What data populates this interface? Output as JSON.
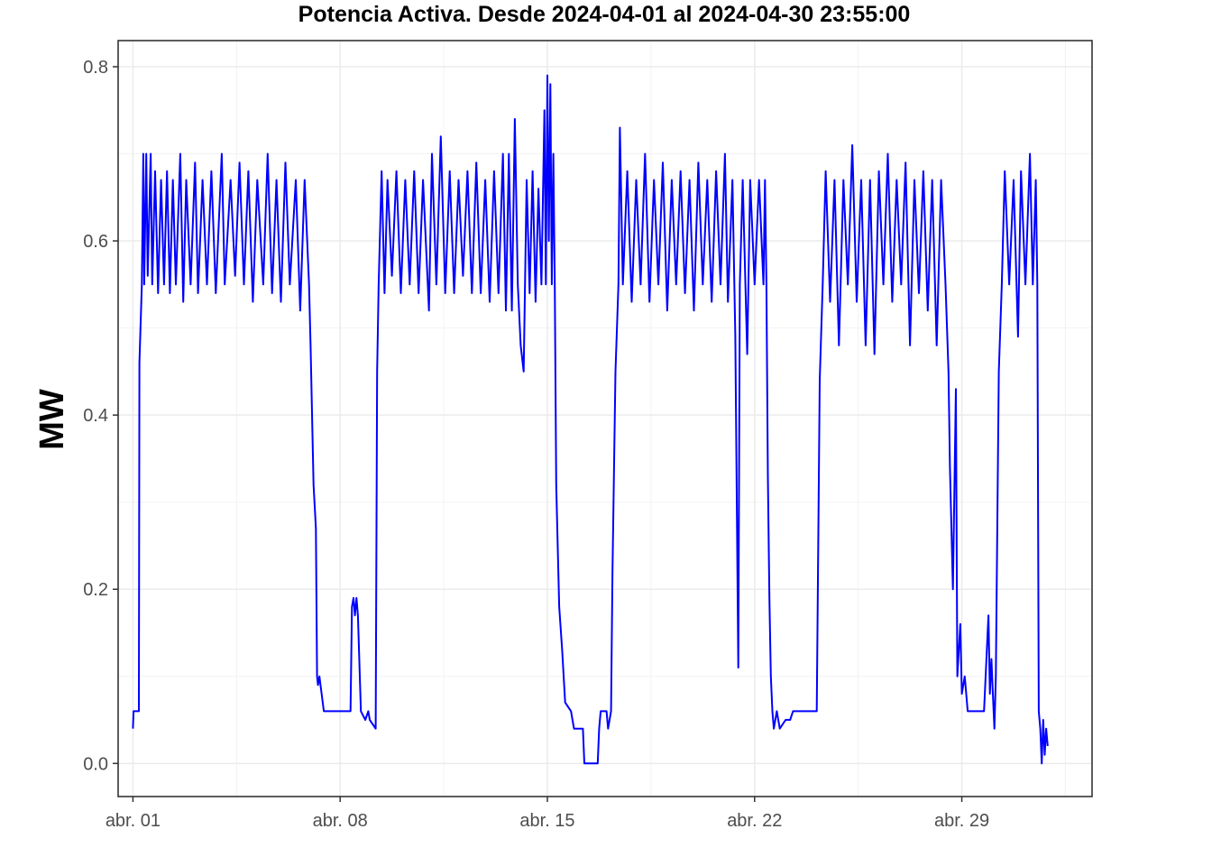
{
  "chart_data": {
    "type": "line",
    "title": "Potencia Activa. Desde  2024-04-01  al  2024-04-30 23:55:00",
    "xlabel": "",
    "ylabel": "MW",
    "x_tick_labels": [
      {
        "day": 1,
        "label": "abr. 01"
      },
      {
        "day": 8,
        "label": "abr. 08"
      },
      {
        "day": 15,
        "label": "abr. 15"
      },
      {
        "day": 22,
        "label": "abr. 22"
      },
      {
        "day": 29,
        "label": "abr. 29"
      }
    ],
    "y_tick_labels": [
      {
        "value": 0.0,
        "label": "0.0"
      },
      {
        "value": 0.2,
        "label": "0.2"
      },
      {
        "value": 0.4,
        "label": "0.4"
      },
      {
        "value": 0.6,
        "label": "0.6"
      },
      {
        "value": 0.8,
        "label": "0.8"
      }
    ],
    "xlim": [
      -0.5,
      32.4
    ],
    "ylim": [
      -0.038,
      0.83
    ],
    "grid": true,
    "line_color": "#0000ff",
    "series": [
      {
        "x_unit": "days since 2024-04-01 00:00 (x=0 is abr. 01)",
        "points": [
          [
            0.0,
            0.04
          ],
          [
            0.02,
            0.06
          ],
          [
            0.2,
            0.06
          ],
          [
            0.22,
            0.46
          ],
          [
            0.3,
            0.55
          ],
          [
            0.35,
            0.7
          ],
          [
            0.38,
            0.55
          ],
          [
            0.45,
            0.7
          ],
          [
            0.5,
            0.56
          ],
          [
            0.6,
            0.7
          ],
          [
            0.65,
            0.55
          ],
          [
            0.75,
            0.68
          ],
          [
            0.85,
            0.54
          ],
          [
            0.95,
            0.67
          ],
          [
            1.05,
            0.55
          ],
          [
            1.15,
            0.68
          ],
          [
            1.25,
            0.54
          ],
          [
            1.35,
            0.67
          ],
          [
            1.45,
            0.55
          ],
          [
            1.6,
            0.7
          ],
          [
            1.7,
            0.53
          ],
          [
            1.8,
            0.67
          ],
          [
            1.95,
            0.55
          ],
          [
            2.1,
            0.69
          ],
          [
            2.2,
            0.54
          ],
          [
            2.35,
            0.67
          ],
          [
            2.5,
            0.55
          ],
          [
            2.65,
            0.68
          ],
          [
            2.8,
            0.54
          ],
          [
            3.0,
            0.7
          ],
          [
            3.1,
            0.55
          ],
          [
            3.3,
            0.67
          ],
          [
            3.45,
            0.56
          ],
          [
            3.6,
            0.69
          ],
          [
            3.75,
            0.55
          ],
          [
            3.9,
            0.68
          ],
          [
            4.05,
            0.53
          ],
          [
            4.2,
            0.67
          ],
          [
            4.4,
            0.55
          ],
          [
            4.55,
            0.7
          ],
          [
            4.7,
            0.54
          ],
          [
            4.85,
            0.67
          ],
          [
            5.0,
            0.53
          ],
          [
            5.15,
            0.69
          ],
          [
            5.3,
            0.55
          ],
          [
            5.5,
            0.67
          ],
          [
            5.65,
            0.52
          ],
          [
            5.8,
            0.67
          ],
          [
            5.95,
            0.55
          ],
          [
            6.0,
            0.48
          ],
          [
            6.1,
            0.32
          ],
          [
            6.18,
            0.27
          ],
          [
            6.22,
            0.1
          ],
          [
            6.25,
            0.09
          ],
          [
            6.3,
            0.1
          ],
          [
            6.45,
            0.06
          ],
          [
            7.0,
            0.06
          ],
          [
            7.35,
            0.06
          ],
          [
            7.4,
            0.18
          ],
          [
            7.45,
            0.19
          ],
          [
            7.5,
            0.17
          ],
          [
            7.55,
            0.19
          ],
          [
            7.6,
            0.17
          ],
          [
            7.7,
            0.06
          ],
          [
            7.85,
            0.05
          ],
          [
            7.95,
            0.06
          ],
          [
            8.0,
            0.05
          ],
          [
            8.2,
            0.04
          ],
          [
            8.25,
            0.45
          ],
          [
            8.3,
            0.55
          ],
          [
            8.4,
            0.68
          ],
          [
            8.5,
            0.54
          ],
          [
            8.6,
            0.67
          ],
          [
            8.75,
            0.56
          ],
          [
            8.9,
            0.68
          ],
          [
            9.05,
            0.54
          ],
          [
            9.2,
            0.67
          ],
          [
            9.35,
            0.55
          ],
          [
            9.5,
            0.68
          ],
          [
            9.65,
            0.54
          ],
          [
            9.8,
            0.67
          ],
          [
            10.0,
            0.52
          ],
          [
            10.1,
            0.7
          ],
          [
            10.25,
            0.55
          ],
          [
            10.4,
            0.72
          ],
          [
            10.55,
            0.54
          ],
          [
            10.7,
            0.68
          ],
          [
            10.85,
            0.54
          ],
          [
            11.0,
            0.67
          ],
          [
            11.15,
            0.56
          ],
          [
            11.3,
            0.68
          ],
          [
            11.45,
            0.54
          ],
          [
            11.6,
            0.69
          ],
          [
            11.75,
            0.54
          ],
          [
            11.9,
            0.67
          ],
          [
            12.05,
            0.53
          ],
          [
            12.2,
            0.68
          ],
          [
            12.35,
            0.54
          ],
          [
            12.5,
            0.7
          ],
          [
            12.6,
            0.52
          ],
          [
            12.7,
            0.7
          ],
          [
            12.8,
            0.52
          ],
          [
            12.9,
            0.74
          ],
          [
            13.0,
            0.55
          ],
          [
            13.1,
            0.48
          ],
          [
            13.2,
            0.45
          ],
          [
            13.3,
            0.67
          ],
          [
            13.4,
            0.54
          ],
          [
            13.5,
            0.68
          ],
          [
            13.6,
            0.53
          ],
          [
            13.7,
            0.66
          ],
          [
            13.8,
            0.55
          ],
          [
            13.9,
            0.75
          ],
          [
            13.95,
            0.55
          ],
          [
            14.0,
            0.79
          ],
          [
            14.05,
            0.6
          ],
          [
            14.1,
            0.78
          ],
          [
            14.15,
            0.55
          ],
          [
            14.2,
            0.7
          ],
          [
            14.25,
            0.55
          ],
          [
            14.3,
            0.32
          ],
          [
            14.4,
            0.18
          ],
          [
            14.5,
            0.13
          ],
          [
            14.6,
            0.07
          ],
          [
            14.8,
            0.06
          ],
          [
            14.9,
            0.04
          ],
          [
            15.2,
            0.04
          ],
          [
            15.25,
            0.0
          ],
          [
            15.7,
            0.0
          ],
          [
            15.75,
            0.04
          ],
          [
            15.8,
            0.06
          ],
          [
            16.0,
            0.06
          ],
          [
            16.05,
            0.04
          ],
          [
            16.15,
            0.06
          ],
          [
            16.2,
            0.22
          ],
          [
            16.3,
            0.45
          ],
          [
            16.4,
            0.55
          ],
          [
            16.45,
            0.73
          ],
          [
            16.55,
            0.55
          ],
          [
            16.7,
            0.68
          ],
          [
            16.85,
            0.53
          ],
          [
            17.0,
            0.67
          ],
          [
            17.15,
            0.55
          ],
          [
            17.3,
            0.7
          ],
          [
            17.45,
            0.53
          ],
          [
            17.6,
            0.67
          ],
          [
            17.75,
            0.55
          ],
          [
            17.9,
            0.69
          ],
          [
            18.05,
            0.52
          ],
          [
            18.2,
            0.67
          ],
          [
            18.35,
            0.55
          ],
          [
            18.5,
            0.68
          ],
          [
            18.65,
            0.54
          ],
          [
            18.8,
            0.67
          ],
          [
            18.95,
            0.52
          ],
          [
            19.1,
            0.69
          ],
          [
            19.25,
            0.55
          ],
          [
            19.4,
            0.67
          ],
          [
            19.55,
            0.53
          ],
          [
            19.7,
            0.68
          ],
          [
            19.85,
            0.55
          ],
          [
            20.0,
            0.7
          ],
          [
            20.1,
            0.53
          ],
          [
            20.25,
            0.67
          ],
          [
            20.35,
            0.49
          ],
          [
            20.45,
            0.11
          ],
          [
            20.5,
            0.55
          ],
          [
            20.6,
            0.67
          ],
          [
            20.75,
            0.47
          ],
          [
            20.85,
            0.67
          ],
          [
            21.0,
            0.55
          ],
          [
            21.15,
            0.67
          ],
          [
            21.3,
            0.55
          ],
          [
            21.35,
            0.67
          ],
          [
            21.4,
            0.55
          ],
          [
            21.45,
            0.33
          ],
          [
            21.5,
            0.19
          ],
          [
            21.55,
            0.1
          ],
          [
            21.6,
            0.06
          ],
          [
            21.65,
            0.04
          ],
          [
            21.75,
            0.06
          ],
          [
            21.85,
            0.04
          ],
          [
            22.05,
            0.05
          ],
          [
            22.2,
            0.05
          ],
          [
            22.3,
            0.06
          ],
          [
            22.6,
            0.06
          ],
          [
            22.85,
            0.06
          ],
          [
            23.0,
            0.06
          ],
          [
            23.1,
            0.06
          ],
          [
            23.2,
            0.44
          ],
          [
            23.3,
            0.55
          ],
          [
            23.4,
            0.68
          ],
          [
            23.55,
            0.53
          ],
          [
            23.7,
            0.67
          ],
          [
            23.85,
            0.48
          ],
          [
            24.0,
            0.67
          ],
          [
            24.15,
            0.55
          ],
          [
            24.3,
            0.71
          ],
          [
            24.45,
            0.53
          ],
          [
            24.6,
            0.67
          ],
          [
            24.75,
            0.48
          ],
          [
            24.9,
            0.67
          ],
          [
            25.05,
            0.47
          ],
          [
            25.2,
            0.68
          ],
          [
            25.35,
            0.55
          ],
          [
            25.5,
            0.7
          ],
          [
            25.65,
            0.53
          ],
          [
            25.8,
            0.67
          ],
          [
            25.95,
            0.55
          ],
          [
            26.1,
            0.69
          ],
          [
            26.25,
            0.48
          ],
          [
            26.4,
            0.67
          ],
          [
            26.55,
            0.54
          ],
          [
            26.7,
            0.68
          ],
          [
            26.85,
            0.52
          ],
          [
            27.0,
            0.67
          ],
          [
            27.15,
            0.48
          ],
          [
            27.3,
            0.67
          ],
          [
            27.45,
            0.55
          ],
          [
            27.55,
            0.45
          ],
          [
            27.6,
            0.34
          ],
          [
            27.7,
            0.2
          ],
          [
            27.8,
            0.43
          ],
          [
            27.85,
            0.1
          ],
          [
            27.95,
            0.16
          ],
          [
            28.0,
            0.08
          ],
          [
            28.1,
            0.1
          ],
          [
            28.2,
            0.06
          ],
          [
            28.6,
            0.06
          ],
          [
            28.75,
            0.06
          ],
          [
            28.9,
            0.17
          ],
          [
            28.95,
            0.08
          ],
          [
            29.0,
            0.12
          ],
          [
            29.05,
            0.08
          ],
          [
            29.1,
            0.04
          ],
          [
            29.15,
            0.1
          ],
          [
            29.25,
            0.45
          ],
          [
            29.35,
            0.55
          ],
          [
            29.45,
            0.68
          ],
          [
            29.6,
            0.55
          ],
          [
            29.75,
            0.67
          ],
          [
            29.9,
            0.49
          ],
          [
            30.0,
            0.68
          ],
          [
            30.15,
            0.55
          ],
          [
            30.3,
            0.7
          ],
          [
            30.4,
            0.55
          ],
          [
            30.5,
            0.67
          ],
          [
            30.55,
            0.55
          ],
          [
            30.6,
            0.06
          ],
          [
            30.65,
            0.04
          ],
          [
            30.7,
            0.0
          ],
          [
            30.75,
            0.05
          ],
          [
            30.8,
            0.01
          ],
          [
            30.85,
            0.04
          ],
          [
            30.9,
            0.02
          ]
        ]
      }
    ]
  }
}
